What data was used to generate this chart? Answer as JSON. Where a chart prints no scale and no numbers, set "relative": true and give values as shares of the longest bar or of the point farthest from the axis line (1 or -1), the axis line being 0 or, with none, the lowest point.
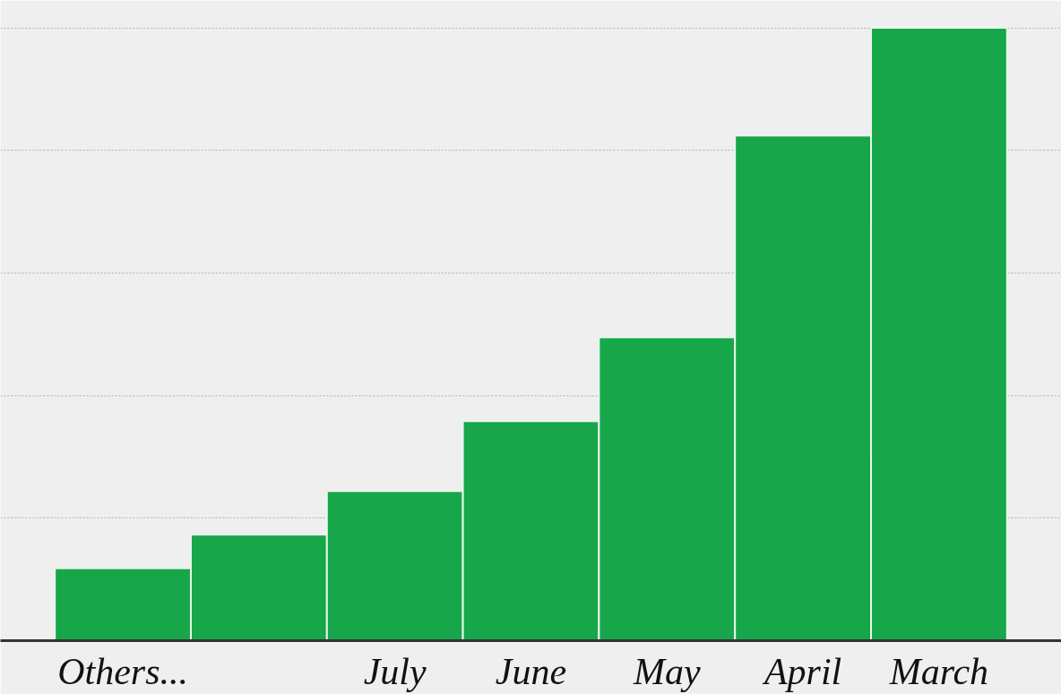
{
  "chart_data": {
    "type": "bar",
    "relative": true,
    "categories": [
      "Others...",
      null,
      "July",
      "June",
      "May",
      "April",
      "March"
    ],
    "values": [
      0.118,
      0.173,
      0.244,
      0.358,
      0.495,
      0.824,
      1.0
    ],
    "color": "#17a64a",
    "grid": "y"
  }
}
